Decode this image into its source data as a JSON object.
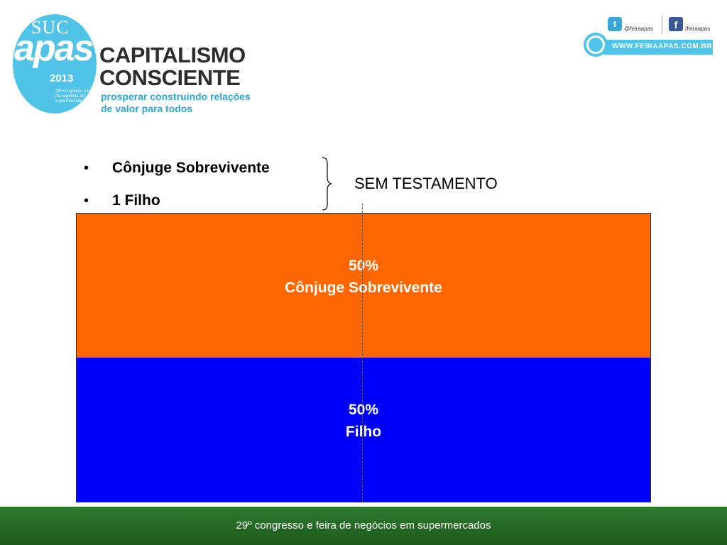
{
  "header": {
    "logo": {
      "ghost_text": "SUC",
      "brand": "apas",
      "year": "2013",
      "small_text": "29º congresso e feira de negócios em supermercados"
    },
    "title_line1": "CAPITALISMO",
    "title_line2": "CONSCIENTE",
    "tagline_line1": "prosperar construindo relações",
    "tagline_line2": "de valor para todos",
    "twitter_handle": "@feiraapas",
    "facebook_handle": "/feiraapas",
    "website": "WWW.FEIRAAPAS.COM.BR",
    "twitter_icon_char": "t",
    "facebook_icon_char": "f"
  },
  "bullets": [
    {
      "marker": "•",
      "text": "Cônjuge Sobrevivente"
    },
    {
      "marker": "•",
      "text": "1 Filho"
    }
  ],
  "brace_label": "SEM TESTAMENTO",
  "chart_data": {
    "type": "bar",
    "orientation": "stacked-vertical",
    "segments": [
      {
        "name": "Cônjuge Sobrevivente",
        "percent_label": "50%",
        "value": 50,
        "color": "#ff6600"
      },
      {
        "name": "Filho",
        "percent_label": "50%",
        "value": 50,
        "color": "#0000ff"
      }
    ],
    "total": 100
  },
  "footer": {
    "text": "29º congresso e feira de negócios em supermercados",
    "color": "#2f7a2e"
  }
}
